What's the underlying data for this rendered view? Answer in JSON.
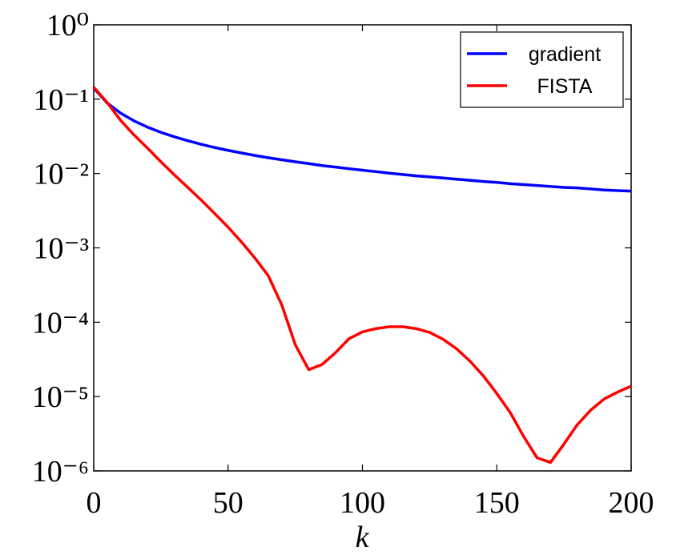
{
  "chart_data": {
    "type": "line",
    "xlabel": "k",
    "x": [
      0,
      5,
      10,
      15,
      20,
      25,
      30,
      35,
      40,
      45,
      50,
      55,
      60,
      65,
      70,
      75,
      80,
      85,
      90,
      95,
      100,
      105,
      110,
      115,
      120,
      125,
      130,
      135,
      140,
      145,
      150,
      155,
      160,
      165,
      170,
      175,
      180,
      185,
      190,
      195,
      200
    ],
    "series": [
      {
        "name": "gradient",
        "color": "#0000ff",
        "values": [
          0.141,
          0.0889,
          0.0649,
          0.0511,
          0.0421,
          0.0358,
          0.0312,
          0.0276,
          0.0247,
          0.0224,
          0.0205,
          0.0189,
          0.0175,
          0.0163,
          0.0153,
          0.0144,
          0.0136,
          0.0128,
          0.0122,
          0.0116,
          0.0111,
          0.0106,
          0.0101,
          0.0097,
          0.0093,
          0.009,
          0.0087,
          0.0084,
          0.0081,
          0.0078,
          0.0076,
          0.0073,
          0.0071,
          0.0069,
          0.0067,
          0.0065,
          0.0064,
          0.0062,
          0.006,
          0.0059,
          0.0058
        ]
      },
      {
        "name": "FISTA",
        "color": "#ff0000",
        "values": [
          0.145,
          0.09,
          0.052,
          0.033,
          0.022,
          0.0144,
          0.0096,
          0.0065,
          0.0044,
          0.0029,
          0.0019,
          0.0012,
          0.00073,
          0.00042,
          0.00017,
          5e-05,
          2.3e-05,
          2.7e-05,
          3.9e-05,
          6e-05,
          7.4e-05,
          8.2e-05,
          8.7e-05,
          8.7e-05,
          8.2e-05,
          7.3e-05,
          5.9e-05,
          4.4e-05,
          3e-05,
          1.9e-05,
          1.1e-05,
          6.1e-06,
          2.9e-06,
          1.5e-06,
          1.3e-06,
          2.3e-06,
          4.2e-06,
          6.6e-06,
          9.3e-06,
          1.15e-05,
          1.38e-05
        ]
      }
    ],
    "xlim": [
      0,
      200
    ],
    "xticks": [
      0,
      50,
      100,
      150,
      200
    ],
    "ylim": [
      1e-06,
      1
    ],
    "ylog": true,
    "yticks": [
      {
        "value": 1,
        "label": "10⁰"
      },
      {
        "value": 0.1,
        "label": "10⁻¹"
      },
      {
        "value": 0.01,
        "label": "10⁻²"
      },
      {
        "value": 0.001,
        "label": "10⁻³"
      },
      {
        "value": 0.0001,
        "label": "10⁻⁴"
      },
      {
        "value": 1e-05,
        "label": "10⁻⁵"
      },
      {
        "value": 1e-06,
        "label": "10⁻⁶"
      }
    ],
    "legend": "upper right",
    "grid": false
  }
}
